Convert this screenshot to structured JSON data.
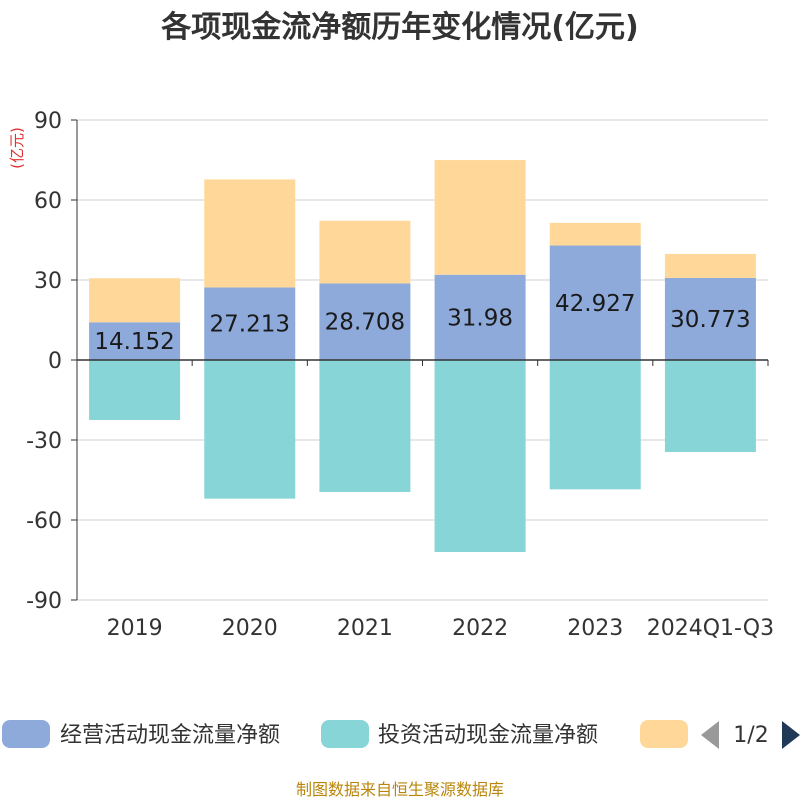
{
  "chart_data": {
    "type": "bar",
    "stacked": true,
    "title": "各项现金流净额历年变化情况(亿元)",
    "ylabel": "(亿元)",
    "ylim": [
      -90,
      90
    ],
    "yticks": [
      90,
      60,
      30,
      0,
      -30,
      -60,
      -90
    ],
    "grid": true,
    "categories": [
      "2019",
      "2020",
      "2021",
      "2022",
      "2023",
      "2024Q1-Q3"
    ],
    "series": [
      {
        "name": "经营活动现金流量净额",
        "color": "#8eaadb",
        "values": [
          14.152,
          27.213,
          28.708,
          31.98,
          42.927,
          30.773
        ],
        "labels": [
          "14.152",
          "27.213",
          "28.708",
          "31.98",
          "42.927",
          "30.773"
        ]
      },
      {
        "name": "投资活动现金流量净额",
        "color": "#88d5d8",
        "values": [
          -22.5,
          -52,
          -49.5,
          -72,
          -48.5,
          -34.5
        ]
      },
      {
        "name": "",
        "color": "#ffd899",
        "values": [
          16.5,
          40.5,
          23.5,
          43,
          8.5,
          9
        ]
      }
    ],
    "legend": {
      "position": "bottom",
      "page": "1/2"
    },
    "source": "制图数据来自恒生聚源数据库",
    "colors": {
      "unit": "#e03030",
      "source": "#b8860b",
      "grid": "#d0d0d0",
      "axis": "#333333",
      "nav_prev": "#999999",
      "nav_next": "#1f3a57"
    }
  }
}
